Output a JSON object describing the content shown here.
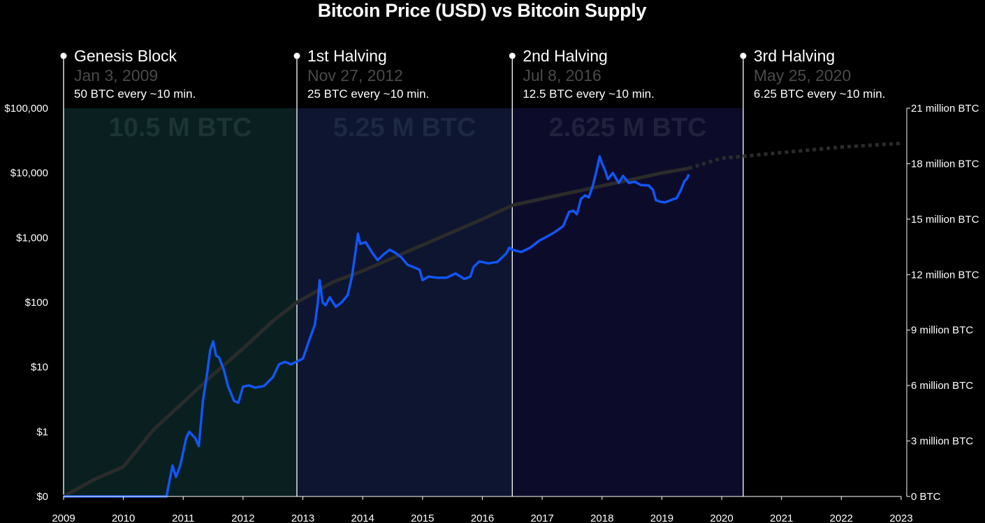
{
  "chart_data": {
    "type": "line",
    "title": "Bitcoin Price (USD) vs Bitcoin Supply",
    "x_range": [
      2009,
      2023
    ],
    "x_ticks": [
      "2009",
      "2010",
      "2011",
      "2012",
      "2013",
      "2014",
      "2015",
      "2016",
      "2017",
      "2018",
      "2019",
      "2020",
      "2021",
      "2022",
      "2023"
    ],
    "y_left": {
      "scale": "log",
      "ticks": [
        {
          "value": 0,
          "label": "$0"
        },
        {
          "value": 1,
          "label": "$1"
        },
        {
          "value": 10,
          "label": "$10"
        },
        {
          "value": 100,
          "label": "$100"
        },
        {
          "value": 1000,
          "label": "$1,000"
        },
        {
          "value": 10000,
          "label": "$10,000"
        },
        {
          "value": 100000,
          "label": "$100,000"
        }
      ]
    },
    "y_right": {
      "scale": "linear",
      "range_million": [
        0,
        21
      ],
      "ticks": [
        {
          "value": 0,
          "label": "0 BTC"
        },
        {
          "value": 3,
          "label": "3 million BTC"
        },
        {
          "value": 6,
          "label": "6 million BTC"
        },
        {
          "value": 9,
          "label": "9 million BTC"
        },
        {
          "value": 12,
          "label": "12 million BTC"
        },
        {
          "value": 15,
          "label": "15 million BTC"
        },
        {
          "value": 18,
          "label": "18 million BTC"
        },
        {
          "value": 21,
          "label": "21 million BTC"
        }
      ]
    },
    "events": [
      {
        "name": "Genesis Block",
        "date": "Jan 3, 2009",
        "reward": "50 BTC every ~10 min.",
        "x": 2009.0
      },
      {
        "name": "1st Halving",
        "date": "Nov 27, 2012",
        "reward": "25 BTC every ~10 min.",
        "x": 2012.9
      },
      {
        "name": "2nd Halving",
        "date": "Jul 8, 2016",
        "reward": "12.5 BTC every ~10 min.",
        "x": 2016.5
      },
      {
        "name": "3rd Halving",
        "date": "May 25, 2020",
        "reward": "6.25 BTC every ~10 min.",
        "x": 2020.36
      }
    ],
    "eras": [
      {
        "label": "10.5 M BTC",
        "x_start": 2009.0,
        "x_end": 2012.9,
        "fill": "#0a2020",
        "text_color": "#1c3434"
      },
      {
        "label": "5.25 M BTC",
        "x_start": 2012.9,
        "x_end": 2016.5,
        "fill": "#0d1530",
        "text_color": "#1d2842"
      },
      {
        "label": "2.625 M BTC",
        "x_start": 2016.5,
        "x_end": 2020.36,
        "fill": "#0c0c2a",
        "text_color": "#21213d"
      }
    ],
    "series": [
      {
        "name": "Bitcoin Price (USD)",
        "color": "#1256f5",
        "axis": "left",
        "points": [
          [
            2009.0,
            0
          ],
          [
            2010.6,
            0
          ],
          [
            2010.65,
            0.06
          ],
          [
            2010.72,
            0.1
          ],
          [
            2010.82,
            0.3
          ],
          [
            2010.88,
            0.2
          ],
          [
            2010.95,
            0.3
          ],
          [
            2011.05,
            0.8
          ],
          [
            2011.1,
            1
          ],
          [
            2011.2,
            0.8
          ],
          [
            2011.26,
            0.6
          ],
          [
            2011.33,
            3
          ],
          [
            2011.4,
            8
          ],
          [
            2011.45,
            18
          ],
          [
            2011.5,
            25
          ],
          [
            2011.55,
            15
          ],
          [
            2011.6,
            14
          ],
          [
            2011.68,
            9
          ],
          [
            2011.75,
            5
          ],
          [
            2011.85,
            3
          ],
          [
            2011.92,
            2.8
          ],
          [
            2012.0,
            5
          ],
          [
            2012.1,
            5.2
          ],
          [
            2012.2,
            4.8
          ],
          [
            2012.35,
            5.1
          ],
          [
            2012.5,
            7
          ],
          [
            2012.6,
            11
          ],
          [
            2012.7,
            12
          ],
          [
            2012.8,
            11
          ],
          [
            2012.9,
            12.2
          ],
          [
            2013.0,
            13.5
          ],
          [
            2013.1,
            25
          ],
          [
            2013.2,
            45
          ],
          [
            2013.25,
            100
          ],
          [
            2013.28,
            220
          ],
          [
            2013.33,
            100
          ],
          [
            2013.38,
            90
          ],
          [
            2013.45,
            120
          ],
          [
            2013.55,
            85
          ],
          [
            2013.65,
            100
          ],
          [
            2013.75,
            130
          ],
          [
            2013.82,
            250
          ],
          [
            2013.88,
            600
          ],
          [
            2013.92,
            1150
          ],
          [
            2013.96,
            800
          ],
          [
            2014.05,
            850
          ],
          [
            2014.15,
            600
          ],
          [
            2014.25,
            450
          ],
          [
            2014.35,
            550
          ],
          [
            2014.45,
            650
          ],
          [
            2014.55,
            580
          ],
          [
            2014.65,
            490
          ],
          [
            2014.75,
            380
          ],
          [
            2014.85,
            350
          ],
          [
            2014.95,
            320
          ],
          [
            2015.0,
            220
          ],
          [
            2015.1,
            250
          ],
          [
            2015.25,
            240
          ],
          [
            2015.4,
            240
          ],
          [
            2015.55,
            280
          ],
          [
            2015.7,
            230
          ],
          [
            2015.8,
            250
          ],
          [
            2015.85,
            350
          ],
          [
            2015.95,
            430
          ],
          [
            2016.1,
            400
          ],
          [
            2016.25,
            420
          ],
          [
            2016.4,
            570
          ],
          [
            2016.45,
            700
          ],
          [
            2016.5,
            650
          ],
          [
            2016.65,
            600
          ],
          [
            2016.8,
            700
          ],
          [
            2016.95,
            900
          ],
          [
            2017.05,
            1000
          ],
          [
            2017.2,
            1200
          ],
          [
            2017.35,
            1500
          ],
          [
            2017.45,
            2500
          ],
          [
            2017.52,
            2600
          ],
          [
            2017.58,
            2300
          ],
          [
            2017.65,
            4000
          ],
          [
            2017.72,
            4500
          ],
          [
            2017.78,
            4200
          ],
          [
            2017.85,
            6500
          ],
          [
            2017.9,
            10000
          ],
          [
            2017.96,
            18000
          ],
          [
            2018.0,
            14000
          ],
          [
            2018.05,
            11000
          ],
          [
            2018.1,
            8000
          ],
          [
            2018.18,
            10000
          ],
          [
            2018.28,
            7000
          ],
          [
            2018.35,
            9000
          ],
          [
            2018.45,
            7000
          ],
          [
            2018.55,
            7300
          ],
          [
            2018.65,
            6500
          ],
          [
            2018.78,
            6400
          ],
          [
            2018.85,
            5500
          ],
          [
            2018.9,
            3800
          ],
          [
            2018.97,
            3600
          ],
          [
            2019.05,
            3500
          ],
          [
            2019.15,
            3800
          ],
          [
            2019.25,
            4100
          ],
          [
            2019.32,
            5500
          ],
          [
            2019.38,
            7500
          ],
          [
            2019.42,
            8200
          ],
          [
            2019.45,
            9500
          ]
        ]
      },
      {
        "name": "Bitcoin Supply",
        "color": "#2b2b2b",
        "axis": "right",
        "points": [
          [
            2009.0,
            0
          ],
          [
            2009.5,
            0.9
          ],
          [
            2010.0,
            1.6
          ],
          [
            2010.5,
            3.6
          ],
          [
            2011.0,
            5.1
          ],
          [
            2011.5,
            6.6
          ],
          [
            2012.0,
            8.0
          ],
          [
            2012.5,
            9.5
          ],
          [
            2012.9,
            10.5
          ],
          [
            2013.5,
            11.6
          ],
          [
            2014.0,
            12.2
          ],
          [
            2015.0,
            13.6
          ],
          [
            2016.0,
            15.0
          ],
          [
            2016.5,
            15.75
          ],
          [
            2017.0,
            16.1
          ],
          [
            2018.0,
            16.8
          ],
          [
            2019.0,
            17.5
          ],
          [
            2019.45,
            17.75
          ]
        ],
        "projection_points": [
          [
            2019.45,
            17.75
          ],
          [
            2020.0,
            18.3
          ],
          [
            2020.36,
            18.4
          ],
          [
            2021.0,
            18.6
          ],
          [
            2022.0,
            18.9
          ],
          [
            2023.0,
            19.1
          ]
        ]
      }
    ]
  }
}
